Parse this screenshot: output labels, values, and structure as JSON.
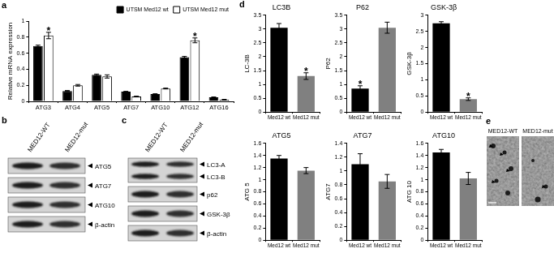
{
  "panel_labels": [
    "a",
    "b",
    "c",
    "d",
    "e"
  ],
  "chart_data": [
    {
      "type": "bar",
      "y_label": "Relative mRNA expression",
      "categories": [
        "ATG3",
        "ATG4",
        "ATG5",
        "ATG7",
        "ATG10",
        "ATG12",
        "ATG16"
      ],
      "series": [
        {
          "name": "UTSM Med12 wt",
          "color": "#000000",
          "values": [
            0.69,
            0.13,
            0.33,
            0.12,
            0.09,
            0.55,
            0.05
          ],
          "errors": [
            0.01,
            0.005,
            0.01,
            0.005,
            0.005,
            0.01,
            0.005
          ]
        },
        {
          "name": "UTSM Med12 mut",
          "color": "#ffffff",
          "values": [
            0.82,
            0.2,
            0.31,
            0.06,
            0.16,
            0.76,
            0.02
          ],
          "errors": [
            0.04,
            0.01,
            0.02,
            0.005,
            0.005,
            0.03,
            0.005
          ]
        }
      ],
      "ylim": [
        0,
        1
      ],
      "yticks": [
        0,
        0.2,
        0.4,
        0.6,
        0.8,
        1
      ],
      "grid": false,
      "legend": "upper right",
      "annotations": [
        {
          "text": "*",
          "series": "UTSM Med12 mut",
          "category": "ATG3"
        },
        {
          "text": "*",
          "series": "UTSM Med12 mut",
          "category": "ATG12"
        }
      ]
    },
    {
      "type": "bar",
      "title": "LC3B",
      "y_label": "LC-3B",
      "categories": [
        "Med12 wt",
        "Med12 mut"
      ],
      "values": [
        3.05,
        1.3
      ],
      "errors": [
        0.15,
        0.12
      ],
      "colors": [
        "#000000",
        "#808080"
      ],
      "ylim": [
        0,
        3.5
      ],
      "yticks": [
        0,
        0.5,
        1,
        1.5,
        2,
        2.5,
        3,
        3.5
      ],
      "grid": false,
      "annotations": [
        {
          "text": "*",
          "category": "Med12 mut"
        }
      ]
    },
    {
      "type": "bar",
      "title": "P62",
      "y_label": "P62",
      "categories": [
        "Med12 wt",
        "Med12 mut"
      ],
      "values": [
        0.85,
        3.05
      ],
      "errors": [
        0.1,
        0.2
      ],
      "colors": [
        "#000000",
        "#808080"
      ],
      "ylim": [
        0,
        3.5
      ],
      "yticks": [
        0,
        0.5,
        1,
        1.5,
        2,
        2.5,
        3,
        3.5
      ],
      "grid": false,
      "annotations": [
        {
          "text": "*",
          "category": "Med12 wt"
        }
      ]
    },
    {
      "type": "bar",
      "title": "GSK-3β",
      "y_label": "GSK-3β",
      "categories": [
        "Med12 wt",
        "Med12 mut"
      ],
      "values": [
        2.75,
        0.4
      ],
      "errors": [
        0.05,
        0.04
      ],
      "colors": [
        "#000000",
        "#808080"
      ],
      "ylim": [
        0,
        3
      ],
      "yticks": [
        0,
        0.5,
        1,
        1.5,
        2,
        2.5,
        3
      ],
      "grid": false,
      "annotations": [
        {
          "text": "*",
          "category": "Med12 mut"
        }
      ]
    },
    {
      "type": "bar",
      "title": "ATG5",
      "y_label": "ATG 5",
      "categories": [
        "Med12 wt",
        "Med12 mut"
      ],
      "values": [
        1.35,
        1.15
      ],
      "errors": [
        0.05,
        0.05
      ],
      "colors": [
        "#000000",
        "#808080"
      ],
      "ylim": [
        0,
        1.6
      ],
      "yticks": [
        0,
        0.2,
        0.4,
        0.6,
        0.8,
        1,
        1.2,
        1.4,
        1.6
      ],
      "grid": false
    },
    {
      "type": "bar",
      "title": "ATG7",
      "y_label": "ATG7",
      "categories": [
        "Med12 wt",
        "Med12 mut"
      ],
      "values": [
        1.1,
        0.85
      ],
      "errors": [
        0.15,
        0.1
      ],
      "colors": [
        "#000000",
        "#808080"
      ],
      "ylim": [
        0,
        1.4
      ],
      "yticks": [
        0,
        0.2,
        0.4,
        0.6,
        0.8,
        1,
        1.2,
        1.4
      ],
      "grid": false
    },
    {
      "type": "bar",
      "title": "ATG10",
      "y_label": "ATG 10",
      "categories": [
        "Med12 wt",
        "Med12 mut"
      ],
      "values": [
        1.45,
        1.02
      ],
      "errors": [
        0.05,
        0.1
      ],
      "colors": [
        "#000000",
        "#808080"
      ],
      "ylim": [
        0,
        1.6
      ],
      "yticks": [
        0,
        0.2,
        0.4,
        0.6,
        0.8,
        1,
        1.2,
        1.4,
        1.6
      ],
      "grid": false
    }
  ],
  "blots": [
    {
      "lanes": [
        "MED12-WT",
        "MED12-mut"
      ],
      "rows": [
        [
          "ATG5"
        ],
        [
          "ATG7"
        ],
        [
          "ATG10"
        ],
        [
          "β-actin"
        ]
      ]
    },
    {
      "lanes": [
        "MED12-WT",
        "MED12-mut"
      ],
      "rows": [
        [
          "LC3-A",
          "LC3-B"
        ],
        [
          "p62"
        ],
        [
          "GSK-3β"
        ],
        [
          "β-actin"
        ]
      ]
    }
  ],
  "micrographs": {
    "labels": [
      "MED12-WT",
      "MED12-mut"
    ]
  }
}
